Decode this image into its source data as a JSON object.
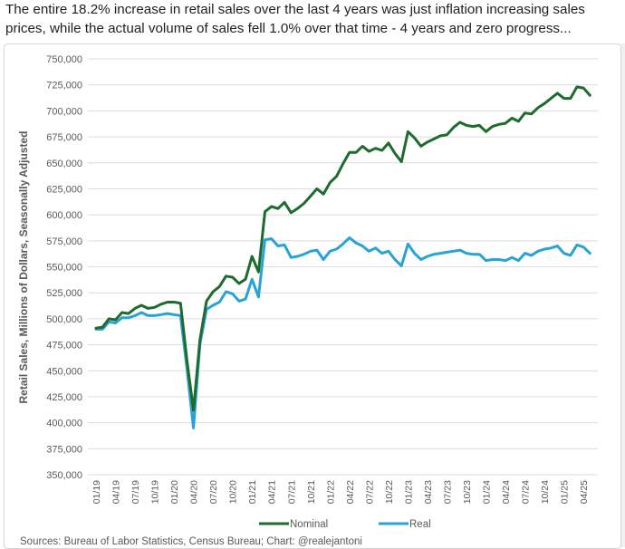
{
  "post": {
    "text": "The entire 18.2% increase in retail sales over the last 4 years was just inflation increasing sales prices, while the actual volume of sales fell 1.0% over that time - 4 years and zero progress..."
  },
  "chart_data": {
    "type": "line",
    "title": "",
    "ylabel": "Retail Sales, Millions of Dollars, Seasonally Adjusted",
    "xlabel": "",
    "ylim": [
      350000,
      750000
    ],
    "yticks": [
      350000,
      375000,
      400000,
      425000,
      450000,
      475000,
      500000,
      525000,
      550000,
      575000,
      600000,
      625000,
      650000,
      675000,
      700000,
      725000,
      750000
    ],
    "ytick_labels": [
      "350,000",
      "375,000",
      "400,000",
      "425,000",
      "450,000",
      "475,000",
      "500,000",
      "525,000",
      "550,000",
      "575,000",
      "600,000",
      "625,000",
      "650,000",
      "675,000",
      "700,000",
      "725,000",
      "750,000"
    ],
    "xtick_labels": [
      "01/19",
      "04/19",
      "07/19",
      "10/19",
      "01/20",
      "04/20",
      "07/20",
      "10/20",
      "01/21",
      "04/21",
      "07/21",
      "10/21",
      "01/22",
      "04/22",
      "07/22",
      "10/22",
      "01/23",
      "04/23",
      "07/23",
      "10/23",
      "01/24",
      "04/24",
      "07/24",
      "10/24",
      "01/25",
      "04/25"
    ],
    "x_start": "2019-01",
    "x_end": "2025-05",
    "grid": "horizontal",
    "legend_position": "bottom",
    "source": "Sources: Bureau of Labor Statistics, Census Bureau; Chart: @realejantoni",
    "series": [
      {
        "name": "Nominal",
        "color": "#1e6b2e",
        "values": [
          491000,
          492000,
          500000,
          499000,
          506000,
          505000,
          510000,
          513000,
          510000,
          511000,
          514000,
          516000,
          516000,
          515000,
          460000,
          412000,
          480000,
          517000,
          526000,
          531000,
          541000,
          540000,
          534000,
          538000,
          560000,
          545000,
          603000,
          608000,
          606000,
          612000,
          602000,
          606000,
          611000,
          618000,
          625000,
          620000,
          631000,
          637000,
          649000,
          660000,
          660000,
          666000,
          661000,
          664000,
          662000,
          669000,
          659000,
          651000,
          680000,
          674000,
          666000,
          670000,
          673000,
          676000,
          677000,
          684000,
          689000,
          686000,
          685000,
          686000,
          680000,
          685000,
          687000,
          688000,
          693000,
          690000,
          698000,
          697000,
          703000,
          707000,
          712000,
          717000,
          712000,
          712000,
          723000,
          722000,
          715000
        ],
        "label": "Nominal"
      },
      {
        "name": "Real",
        "color": "#29a3d6",
        "values": [
          490000,
          490000,
          497000,
          496000,
          501000,
          501000,
          503000,
          506000,
          503000,
          503000,
          504000,
          505000,
          504000,
          503000,
          452000,
          395000,
          476000,
          509000,
          513000,
          516000,
          526000,
          524000,
          517000,
          519000,
          538000,
          521000,
          576000,
          577000,
          570000,
          571000,
          559000,
          560000,
          562000,
          565000,
          566000,
          557000,
          565000,
          567000,
          572000,
          578000,
          573000,
          570000,
          565000,
          568000,
          563000,
          565000,
          557000,
          551000,
          572000,
          563000,
          557000,
          560000,
          562000,
          563000,
          564000,
          565000,
          566000,
          563000,
          562000,
          562000,
          556000,
          557000,
          557000,
          556000,
          559000,
          556000,
          563000,
          561000,
          565000,
          567000,
          568000,
          570000,
          563000,
          561000,
          571000,
          569000,
          563000
        ],
        "label": "Real"
      }
    ]
  }
}
